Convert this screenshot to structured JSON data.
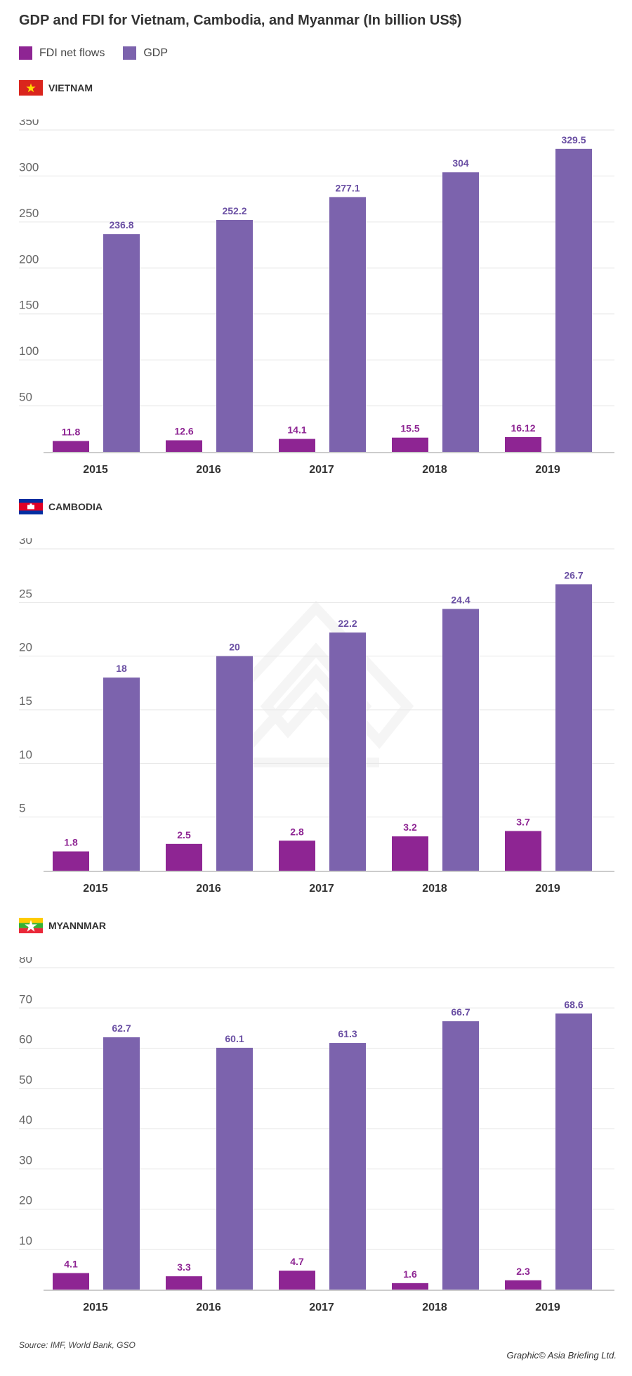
{
  "title": "GDP and FDI for Vietnam, Cambodia, and Myanmar (In billion US$)",
  "legend": [
    {
      "label": "FDI net flows",
      "color": "#8e2593"
    },
    {
      "label": "GDP",
      "color": "#7c63ad"
    }
  ],
  "colors": {
    "fdi": "#8e2593",
    "gdp": "#7c63ad",
    "fdi_label": "#8e2593",
    "gdp_label": "#6a4fa3"
  },
  "chart_data": [
    {
      "type": "bar",
      "title": "VIETNAM",
      "flag": "vietnam-flag",
      "categories": [
        "2015",
        "2016",
        "2017",
        "2018",
        "2019"
      ],
      "series": [
        {
          "name": "FDI net flows",
          "values": [
            11.8,
            12.6,
            14.1,
            15.5,
            16.12
          ],
          "labels": [
            "11.8",
            "12.6",
            "14.1",
            "15.5",
            "16.12"
          ]
        },
        {
          "name": "GDP",
          "values": [
            236.8,
            252.2,
            277.1,
            304,
            329.5
          ],
          "labels": [
            "236.8",
            "252.2",
            "277.1",
            "304",
            "329.5"
          ]
        }
      ],
      "yticks": [
        50,
        100,
        150,
        200,
        250,
        300,
        350
      ],
      "ytick_labels": [
        "50",
        "100",
        "150",
        "200",
        "250",
        "300",
        "350"
      ],
      "ylim": [
        0,
        350
      ]
    },
    {
      "type": "bar",
      "title": "CAMBODIA",
      "flag": "cambodia-flag",
      "categories": [
        "2015",
        "2016",
        "2017",
        "2018",
        "2019"
      ],
      "series": [
        {
          "name": "FDI net flows",
          "values": [
            1.8,
            2.5,
            2.8,
            3.2,
            3.7
          ],
          "labels": [
            "1.8",
            "2.5",
            "2.8",
            "3.2",
            "3.7"
          ]
        },
        {
          "name": "GDP",
          "values": [
            18,
            20,
            22.2,
            24.4,
            26.7
          ],
          "labels": [
            "18",
            "20",
            "22.2",
            "24.4",
            "26.7"
          ]
        }
      ],
      "yticks": [
        5,
        10,
        15,
        20,
        25,
        30
      ],
      "ytick_labels": [
        "5",
        "10",
        "15",
        "20",
        "25",
        "30"
      ],
      "ylim": [
        0,
        30
      ]
    },
    {
      "type": "bar",
      "title": "MYANNMAR",
      "flag": "myanmar-flag",
      "categories": [
        "2015",
        "2016",
        "2017",
        "2018",
        "2019"
      ],
      "series": [
        {
          "name": "FDI net flows",
          "values": [
            4.1,
            3.3,
            4.7,
            1.6,
            2.3
          ],
          "labels": [
            "4.1",
            "3.3",
            "4.7",
            "1.6",
            "2.3"
          ]
        },
        {
          "name": "GDP",
          "values": [
            62.7,
            60.1,
            61.3,
            66.7,
            68.6
          ],
          "labels": [
            "62.7",
            "60.1",
            "61.3",
            "66.7",
            "68.6"
          ]
        }
      ],
      "yticks": [
        10,
        20,
        30,
        40,
        50,
        60,
        70,
        80
      ],
      "ytick_labels": [
        "10",
        "20",
        "30",
        "40",
        "50",
        "60",
        "70",
        "80"
      ],
      "ylim": [
        0,
        80
      ]
    }
  ],
  "source": "Source: IMF, World Bank, GSO",
  "credit": "Graphic© Asia Briefing Ltd."
}
